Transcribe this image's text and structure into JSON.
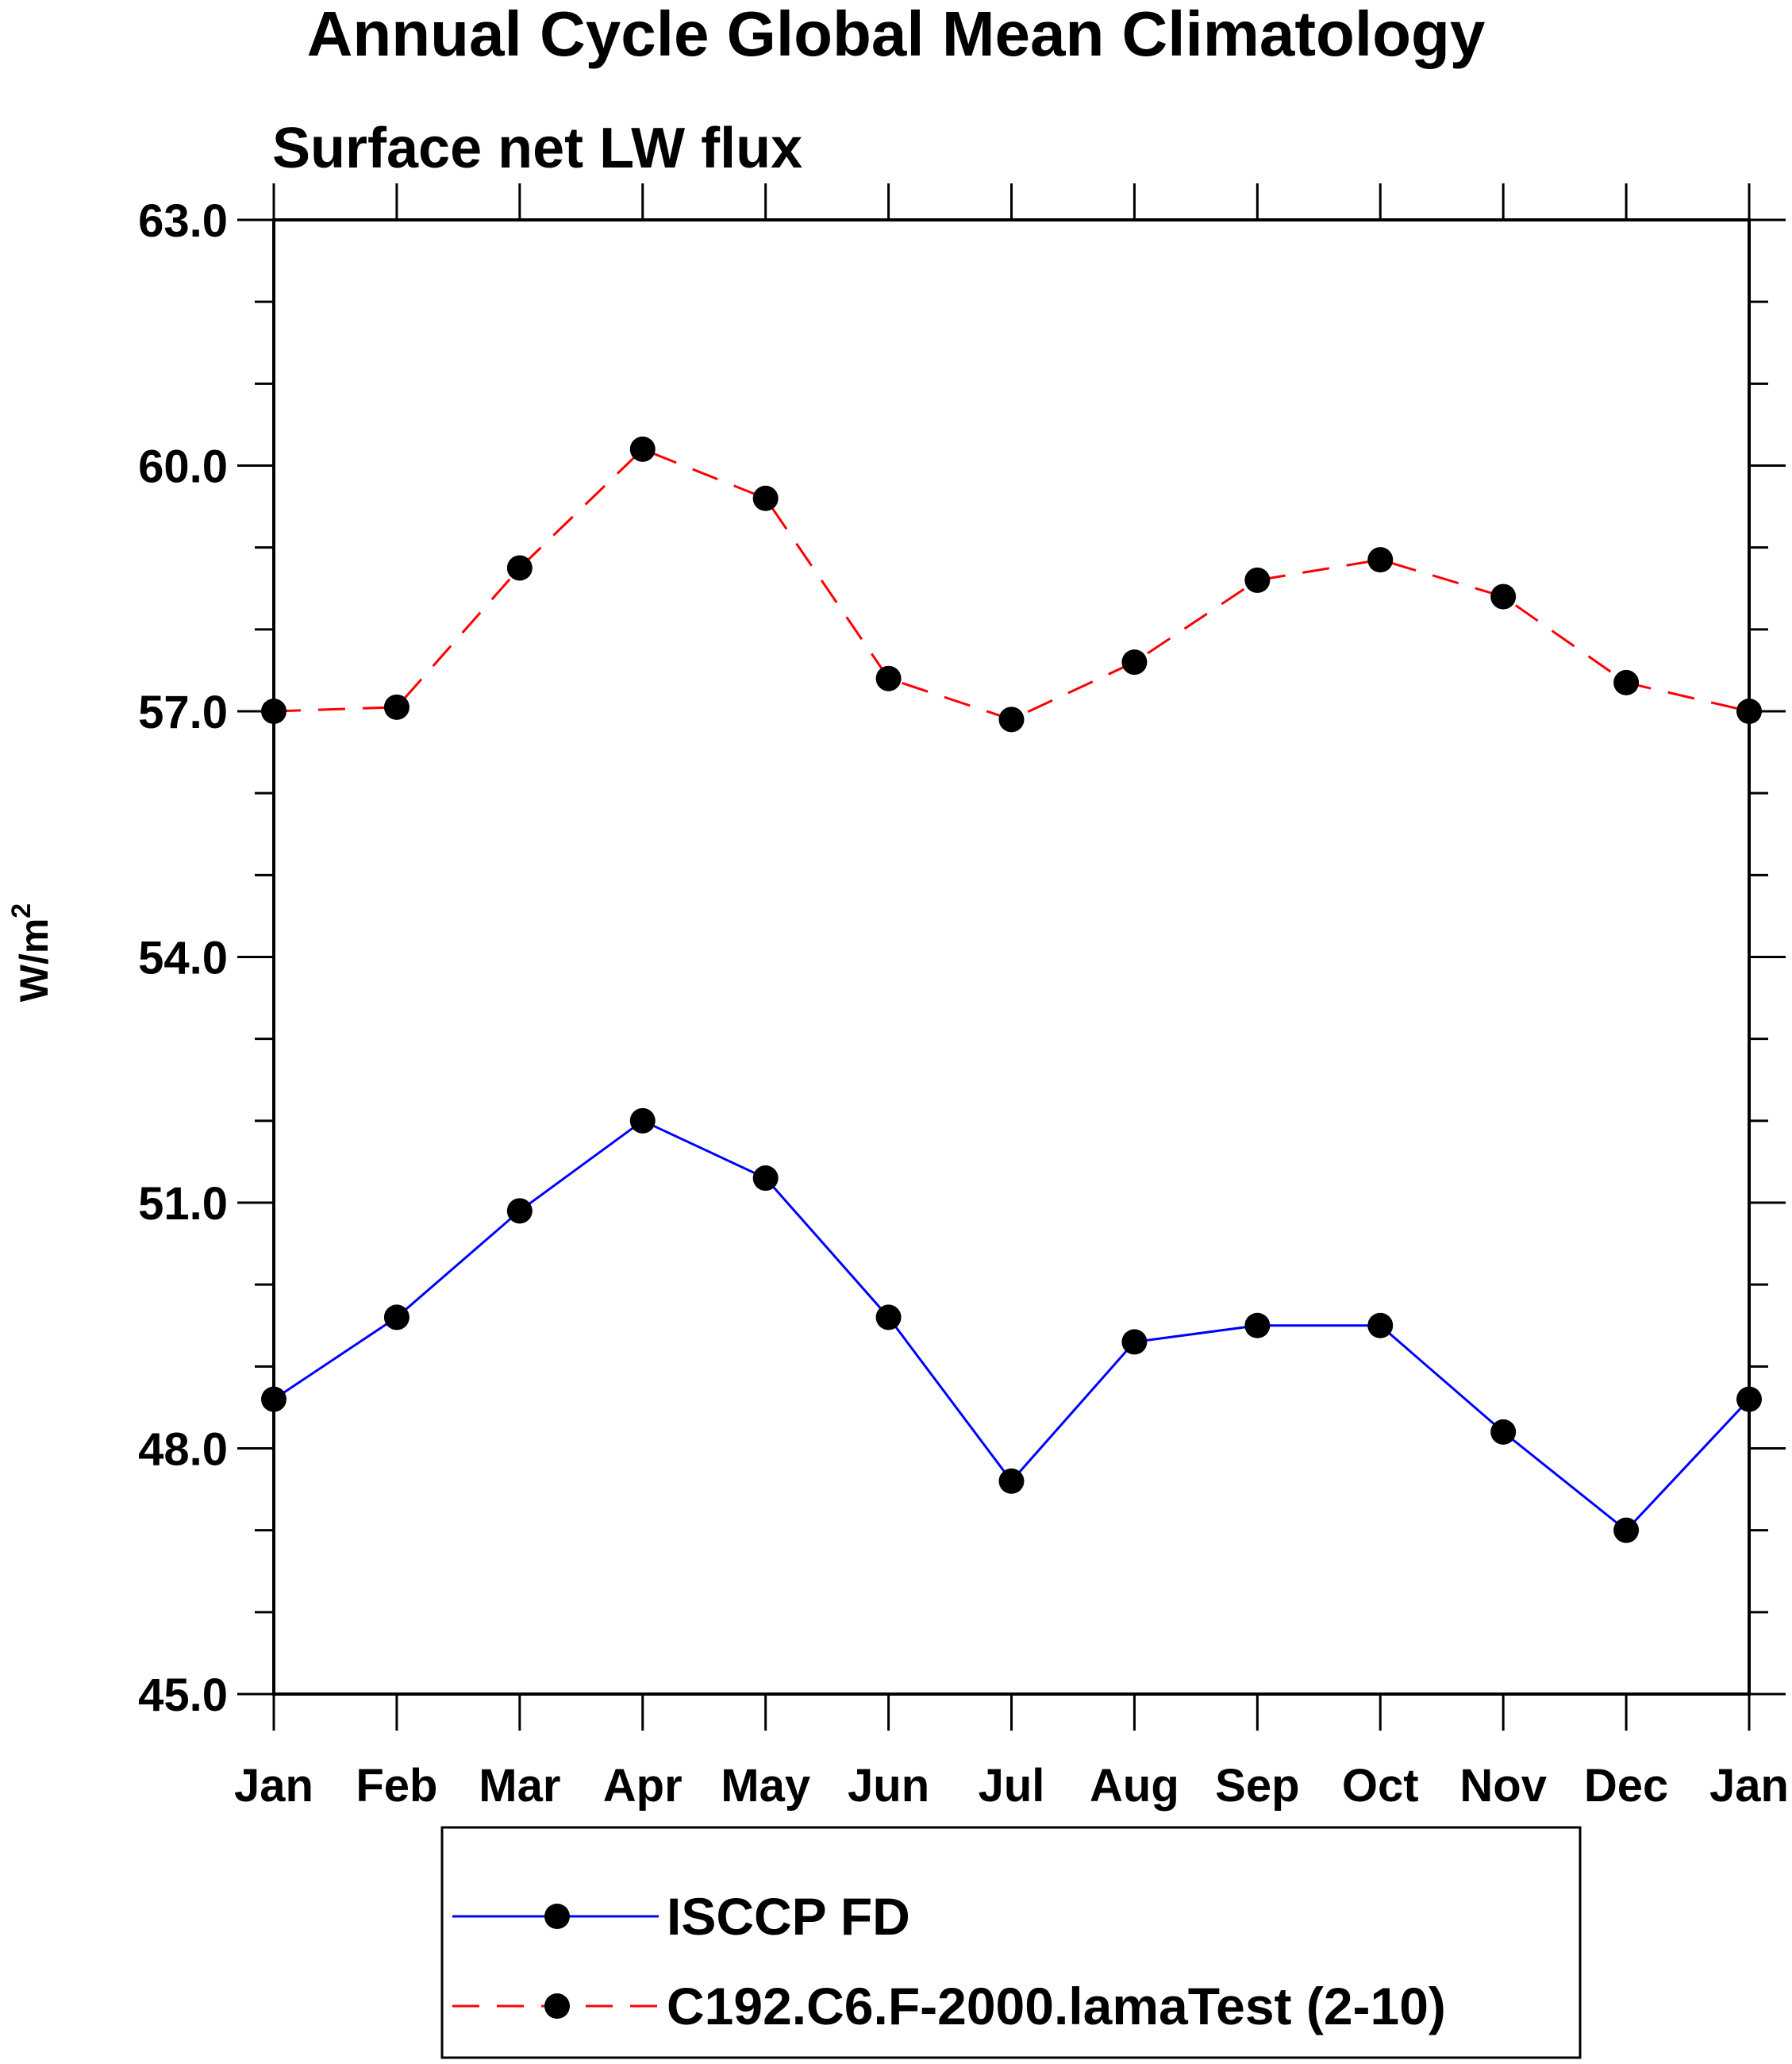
{
  "chart_data": {
    "type": "line",
    "title": "Annual Cycle Global Mean Climatology",
    "subtitle": "Surface net LW flux",
    "ylabel": "W/m",
    "ylabel_superscript": "2",
    "xlabel": "",
    "categories": [
      "Jan",
      "Feb",
      "Mar",
      "Apr",
      "May",
      "Jun",
      "Jul",
      "Aug",
      "Sep",
      "Oct",
      "Nov",
      "Dec",
      "Jan"
    ],
    "ylim": [
      45.0,
      63.0
    ],
    "yticks": [
      "45.0",
      "48.0",
      "51.0",
      "54.0",
      "57.0",
      "60.0",
      "63.0"
    ],
    "ytick_values": [
      45.0,
      48.0,
      51.0,
      54.0,
      57.0,
      60.0,
      63.0
    ],
    "y_minor_step": 1.0,
    "grid": false,
    "legend_position": "bottom-center",
    "series": [
      {
        "name": "ISCCP FD",
        "color": "#0000ff",
        "line_style": "solid",
        "marker": "filled-circle",
        "values": [
          48.6,
          49.6,
          50.9,
          52.0,
          51.3,
          49.6,
          47.6,
          49.3,
          49.5,
          49.5,
          48.2,
          47.0,
          48.6
        ]
      },
      {
        "name": "C192.C6.F-2000.lamaTest (2-10)",
        "color": "#ff0000",
        "line_style": "dashed",
        "marker": "filled-circle",
        "values": [
          57.0,
          57.05,
          58.75,
          60.2,
          59.6,
          57.4,
          56.9,
          57.6,
          58.6,
          58.85,
          58.4,
          57.35,
          57.0
        ]
      }
    ]
  }
}
